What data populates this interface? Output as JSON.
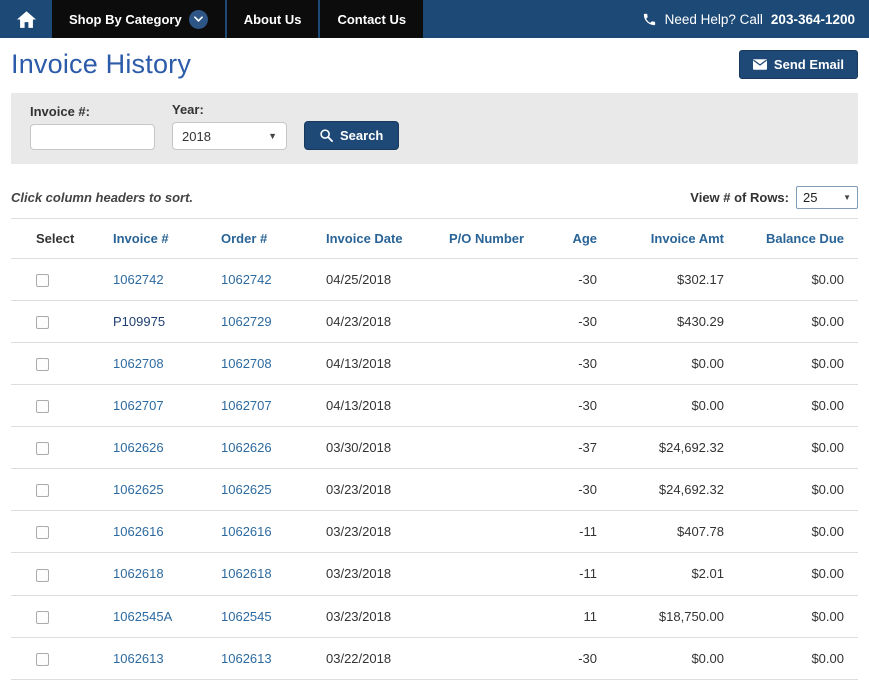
{
  "nav": {
    "items": [
      {
        "label": "Shop By Category"
      },
      {
        "label": "About Us"
      },
      {
        "label": "Contact Us"
      }
    ],
    "help_prefix": "Need Help? Call",
    "help_phone": "203-364-1200"
  },
  "page": {
    "title": "Invoice History",
    "send_email_label": "Send Email"
  },
  "filters": {
    "invoice_label": "Invoice #:",
    "invoice_value": "",
    "year_label": "Year:",
    "year_value": "2018",
    "search_label": "Search"
  },
  "table_controls": {
    "sort_hint": "Click column headers to sort.",
    "rows_label": "View # of Rows:",
    "rows_value": "25"
  },
  "table": {
    "headers": [
      "Select",
      "Invoice #",
      "Order #",
      "Invoice Date",
      "P/O Number",
      "Age",
      "Invoice Amt",
      "Balance Due"
    ],
    "rows": [
      {
        "invoice": "1062742",
        "invoice_is_link": true,
        "order": "1062742",
        "date": "04/25/2018",
        "po": "",
        "age": "-30",
        "amount": "$302.17",
        "balance": "$0.00"
      },
      {
        "invoice": "P109975",
        "invoice_is_link": false,
        "order": "1062729",
        "date": "04/23/2018",
        "po": "",
        "age": "-30",
        "amount": "$430.29",
        "balance": "$0.00"
      },
      {
        "invoice": "1062708",
        "invoice_is_link": true,
        "order": "1062708",
        "date": "04/13/2018",
        "po": "",
        "age": "-30",
        "amount": "$0.00",
        "balance": "$0.00"
      },
      {
        "invoice": "1062707",
        "invoice_is_link": true,
        "order": "1062707",
        "date": "04/13/2018",
        "po": "",
        "age": "-30",
        "amount": "$0.00",
        "balance": "$0.00"
      },
      {
        "invoice": "1062626",
        "invoice_is_link": true,
        "order": "1062626",
        "date": "03/30/2018",
        "po": "",
        "age": "-37",
        "amount": "$24,692.32",
        "balance": "$0.00"
      },
      {
        "invoice": "1062625",
        "invoice_is_link": true,
        "order": "1062625",
        "date": "03/23/2018",
        "po": "",
        "age": "-30",
        "amount": "$24,692.32",
        "balance": "$0.00"
      },
      {
        "invoice": "1062616",
        "invoice_is_link": true,
        "order": "1062616",
        "date": "03/23/2018",
        "po": "",
        "age": "-11",
        "amount": "$407.78",
        "balance": "$0.00"
      },
      {
        "invoice": "1062618",
        "invoice_is_link": true,
        "order": "1062618",
        "date": "03/23/2018",
        "po": "",
        "age": "-11",
        "amount": "$2.01",
        "balance": "$0.00"
      },
      {
        "invoice": "1062545A",
        "invoice_is_link": true,
        "order": "1062545",
        "date": "03/23/2018",
        "po": "",
        "age": "11",
        "amount": "$18,750.00",
        "balance": "$0.00"
      },
      {
        "invoice": "1062613",
        "invoice_is_link": true,
        "order": "1062613",
        "date": "03/22/2018",
        "po": "",
        "age": "-30",
        "amount": "$0.00",
        "balance": "$0.00"
      }
    ]
  },
  "colors": {
    "nav_blue": "#1d4976",
    "nav_black": "#0c0c0c",
    "title_blue": "#2b5ba9",
    "button_blue": "#1e4976",
    "header_blue": "#2a6496",
    "link_blue": "#2d6a9f",
    "link_dark": "#1f3e70",
    "filter_gray": "#e9e9e9",
    "border_gray": "#dddddd"
  }
}
